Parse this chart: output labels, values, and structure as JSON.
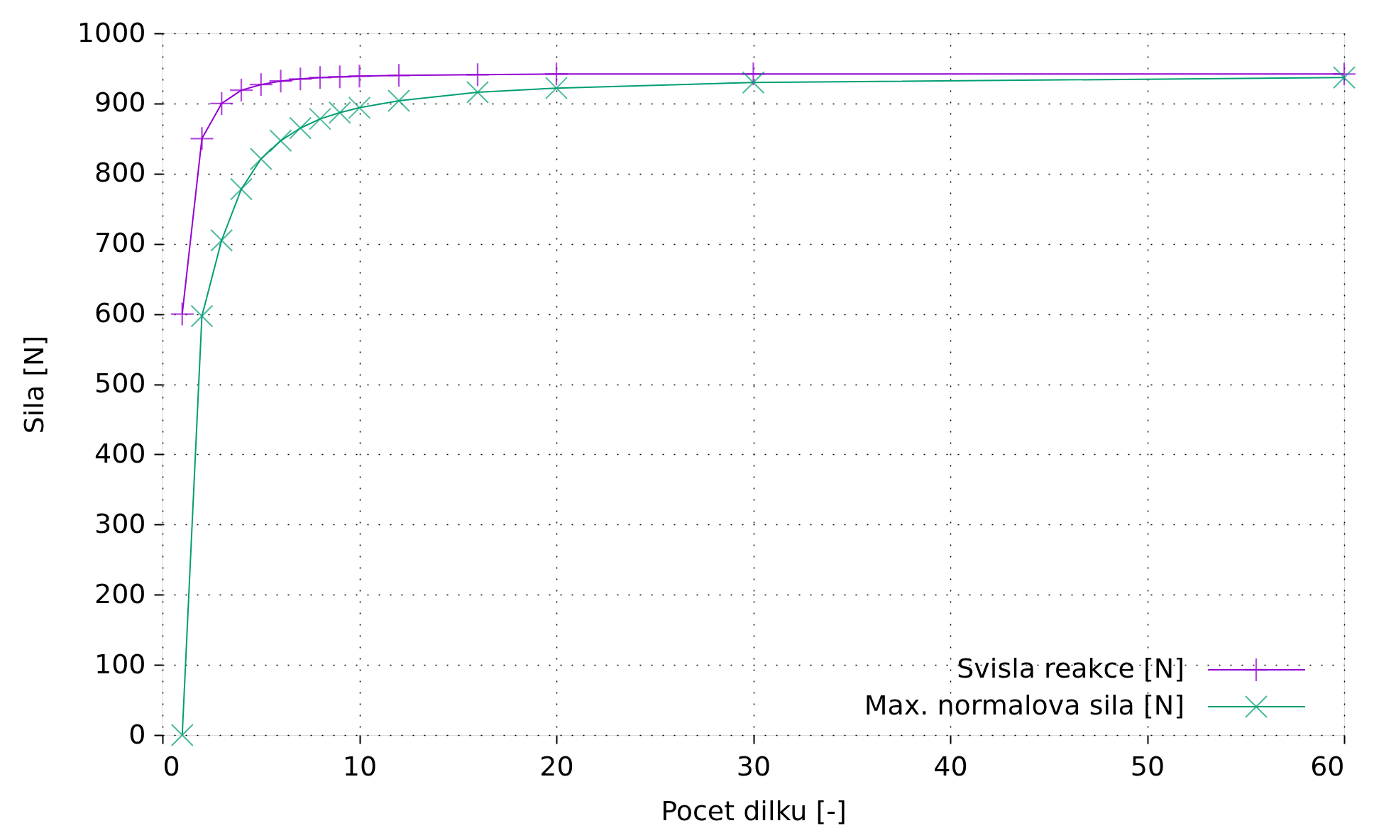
{
  "chart_data": {
    "type": "line",
    "xlabel": "Pocet dilku [-]",
    "ylabel": "Sila [N]",
    "xlim": [
      0,
      60
    ],
    "xticks": [
      0,
      10,
      20,
      30,
      40,
      50,
      60
    ],
    "ylim": [
      0,
      1000
    ],
    "yticks": [
      0,
      100,
      200,
      300,
      400,
      500,
      600,
      700,
      800,
      900,
      1000
    ],
    "grid": true,
    "legend": "bottom right",
    "series": [
      {
        "name": "Svisla reakce [N]",
        "color": "#9400d3",
        "marker": "cross",
        "x": [
          1,
          2,
          3,
          4,
          5,
          6,
          7,
          8,
          9,
          10,
          12,
          16,
          20,
          30,
          60
        ],
        "values": [
          600,
          850,
          900,
          919,
          927,
          932,
          935,
          937,
          938,
          939,
          940,
          941,
          942,
          942,
          942
        ]
      },
      {
        "name": "Max. normalova sila [N]",
        "color": "#009e73",
        "marker": "cross",
        "x": [
          1,
          2,
          3,
          4,
          5,
          6,
          7,
          8,
          9,
          10,
          12,
          16,
          20,
          30,
          60
        ],
        "values": [
          0,
          597,
          705,
          778,
          821,
          847,
          865,
          878,
          887,
          894,
          904,
          916,
          922,
          930,
          937
        ]
      }
    ]
  }
}
